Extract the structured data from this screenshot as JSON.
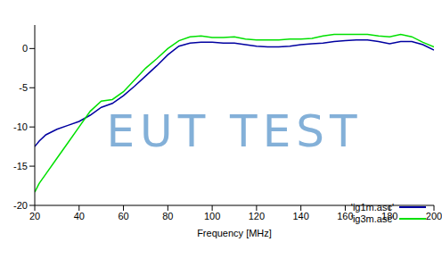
{
  "chart_data": {
    "type": "line",
    "x_label": "Frequency [MHz]",
    "annotation": "EUT TEST",
    "x": [
      20,
      22,
      25,
      30,
      35,
      40,
      45,
      50,
      55,
      60,
      65,
      70,
      75,
      80,
      85,
      90,
      95,
      100,
      105,
      110,
      115,
      120,
      125,
      130,
      135,
      140,
      145,
      150,
      155,
      160,
      165,
      170,
      175,
      180,
      185,
      190,
      195,
      200
    ],
    "series": [
      {
        "name": "'ig1m.asc'",
        "color": "#0000a0",
        "values": [
          -12.5,
          -11.8,
          -11,
          -10.3,
          -9.8,
          -9.3,
          -8.5,
          -7.5,
          -7,
          -6,
          -4.8,
          -3.5,
          -2.2,
          -0.8,
          0.3,
          0.7,
          0.8,
          0.8,
          0.7,
          0.7,
          0.5,
          0.3,
          0.2,
          0.2,
          0.3,
          0.5,
          0.6,
          0.7,
          0.9,
          1.0,
          1.1,
          1.1,
          0.9,
          0.6,
          0.9,
          0.9,
          0.5,
          -0.2
        ]
      },
      {
        "name": "'ig3m.asc'",
        "color": "#00e000",
        "values": [
          -18.3,
          -17.2,
          -16,
          -14,
          -12,
          -10,
          -8,
          -6.7,
          -6.5,
          -5.5,
          -4,
          -2.5,
          -1.3,
          0,
          1.0,
          1.5,
          1.6,
          1.4,
          1.4,
          1.5,
          1.2,
          1.1,
          1.1,
          1.1,
          1.2,
          1.2,
          1.3,
          1.6,
          1.8,
          1.8,
          1.8,
          1.8,
          1.6,
          1.5,
          1.8,
          1.5,
          0.8,
          0.2
        ]
      }
    ],
    "xlim": [
      20,
      200
    ],
    "ylim": [
      -20,
      3
    ],
    "xticks": [
      20,
      40,
      60,
      80,
      100,
      120,
      140,
      160,
      180,
      200
    ],
    "yticks": [
      -20,
      -15,
      -10,
      -5,
      0
    ],
    "grid": false,
    "legend": "lower right"
  }
}
